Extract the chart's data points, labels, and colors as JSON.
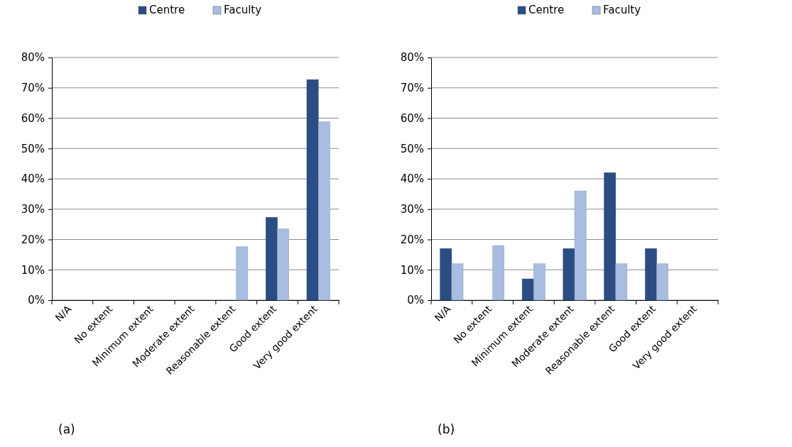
{
  "chart_data": [
    {
      "type": "bar",
      "categories": [
        "N/A",
        "No extent",
        "Minimum extent",
        "Moderate extent",
        "Reasonable extent",
        "Good extent",
        "Very good extent"
      ],
      "series": [
        {
          "name": "Centre",
          "color": "#2b4d84",
          "values": [
            0,
            0,
            0,
            0,
            0,
            27.3,
            72.7
          ]
        },
        {
          "name": "Faculty",
          "color": "#a8bddf",
          "values": [
            0,
            0,
            0,
            0,
            17.6,
            23.5,
            58.8
          ]
        }
      ],
      "ylim": [
        0,
        80
      ],
      "yticks": [
        {
          "value": 0,
          "label": "0%"
        },
        {
          "value": 10,
          "label": "10%"
        },
        {
          "value": 20,
          "label": "20%"
        },
        {
          "value": 30,
          "label": "30%"
        },
        {
          "value": 40,
          "label": "40%"
        },
        {
          "value": 50,
          "label": "50%"
        },
        {
          "value": 60,
          "label": "60%"
        },
        {
          "value": 70,
          "label": "70%"
        },
        {
          "value": 80,
          "label": "80%"
        }
      ],
      "grid": "y",
      "legend": "top",
      "annotations": [
        "(a)"
      ]
    },
    {
      "type": "bar",
      "categories": [
        "N/A",
        "No extent",
        "Minimum extent",
        "Moderate extent",
        "Reasonable extent",
        "Good extent",
        "Very good extent"
      ],
      "series": [
        {
          "name": "Centre",
          "color": "#2b4d84",
          "values": [
            17,
            0,
            7,
            17,
            42,
            17,
            0
          ]
        },
        {
          "name": "Faculty",
          "color": "#a8bddf",
          "values": [
            12,
            18,
            12,
            36,
            12,
            12,
            0
          ]
        }
      ],
      "ylim": [
        0,
        80
      ],
      "yticks": [
        {
          "value": 0,
          "label": "0%"
        },
        {
          "value": 10,
          "label": "10%"
        },
        {
          "value": 20,
          "label": "20%"
        },
        {
          "value": 30,
          "label": "30%"
        },
        {
          "value": 40,
          "label": "40%"
        },
        {
          "value": 50,
          "label": "50%"
        },
        {
          "value": 60,
          "label": "60%"
        },
        {
          "value": 70,
          "label": "70%"
        },
        {
          "value": 80,
          "label": "80%"
        }
      ],
      "grid": "y",
      "legend": "top",
      "annotations": [
        "(b)"
      ]
    }
  ]
}
